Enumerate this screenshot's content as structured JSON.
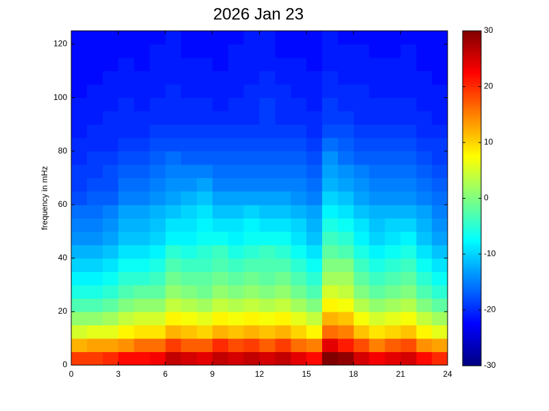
{
  "chart_data": {
    "type": "heatmap",
    "title": "2026 Jan 23",
    "ylabel": "frequency in mHz",
    "colormap": "jet",
    "xlim": [
      0,
      24
    ],
    "xticks": [
      0,
      3,
      6,
      9,
      12,
      15,
      18,
      21,
      24
    ],
    "ylim": [
      0,
      125
    ],
    "yticks": [
      0,
      20,
      40,
      60,
      80,
      100,
      120
    ],
    "clim": [
      -30,
      30
    ],
    "cticks": [
      -30,
      -20,
      -10,
      0,
      10,
      20,
      30
    ],
    "z": [
      [
        19,
        19,
        20,
        22,
        22,
        23,
        26,
        25,
        24,
        26,
        25,
        26,
        25,
        26,
        24,
        22,
        30,
        29,
        25,
        23,
        24,
        25,
        22,
        20
      ],
      [
        12,
        13,
        13,
        14,
        16,
        16,
        19,
        17,
        17,
        20,
        18,
        19,
        17,
        19,
        16,
        15,
        24,
        21,
        18,
        15,
        17,
        18,
        14,
        13
      ],
      [
        5,
        6,
        6,
        8,
        9,
        9,
        12,
        11,
        10,
        12,
        11,
        12,
        11,
        12,
        10,
        8,
        16,
        15,
        11,
        9,
        10,
        11,
        8,
        6
      ],
      [
        1,
        1,
        2,
        4,
        5,
        5,
        8,
        7,
        6,
        8,
        7,
        8,
        7,
        8,
        6,
        4,
        12,
        11,
        7,
        5,
        6,
        7,
        4,
        2
      ],
      [
        -3,
        -3,
        -2,
        0,
        1,
        1,
        4,
        3,
        2,
        4,
        3,
        4,
        3,
        4,
        2,
        0,
        8,
        7,
        3,
        1,
        2,
        3,
        0,
        -2
      ],
      [
        -6,
        -6,
        -5,
        -3,
        -2,
        -2,
        1,
        0,
        -1,
        1,
        0,
        1,
        0,
        1,
        -1,
        -3,
        5,
        4,
        0,
        -2,
        -1,
        0,
        -3,
        -5
      ],
      [
        -8,
        -8,
        -7,
        -5,
        -5,
        -4,
        -1,
        -2,
        -2,
        -1,
        -2,
        -1,
        -2,
        -1,
        -3,
        -5,
        2,
        2,
        -2,
        -4,
        -3,
        -2,
        -5,
        -7
      ],
      [
        -10,
        -10,
        -9,
        -7,
        -7,
        -6,
        -3,
        -4,
        -4,
        -3,
        -4,
        -3,
        -3,
        -3,
        -5,
        -7,
        0,
        0,
        -4,
        -6,
        -5,
        -4,
        -7,
        -9
      ],
      [
        -12,
        -12,
        -11,
        -9,
        -9,
        -8,
        -5,
        -6,
        -5,
        -4,
        -6,
        -5,
        -4,
        -5,
        -7,
        -9,
        -2,
        -3,
        -6,
        -8,
        -7,
        -6,
        -9,
        -11
      ],
      [
        -14,
        -14,
        -13,
        -11,
        -11,
        -10,
        -8,
        -8,
        -7,
        -7,
        -8,
        -7,
        -7,
        -7,
        -9,
        -11,
        -4,
        -5,
        -8,
        -10,
        -9,
        -8,
        -11,
        -13
      ],
      [
        -15,
        -15,
        -14,
        -12,
        -12,
        -11,
        -9,
        -9,
        -8,
        -9,
        -9,
        -8,
        -9,
        -9,
        -10,
        -12,
        -6,
        -7,
        -9,
        -11,
        -10,
        -10,
        -12,
        -14
      ],
      [
        -16,
        -16,
        -15,
        -13,
        -13,
        -12,
        -11,
        -10,
        -9,
        -11,
        -11,
        -10,
        -11,
        -11,
        -12,
        -13,
        -8,
        -9,
        -11,
        -12,
        -12,
        -12,
        -13,
        -15
      ],
      [
        -18,
        -17,
        -17,
        -15,
        -15,
        -14,
        -13,
        -12,
        -11,
        -13,
        -13,
        -13,
        -13,
        -13,
        -14,
        -15,
        -10,
        -11,
        -13,
        -14,
        -14,
        -14,
        -15,
        -16
      ],
      [
        -19,
        -18,
        -18,
        -16,
        -16,
        -15,
        -14,
        -14,
        -13,
        -15,
        -15,
        -15,
        -15,
        -15,
        -15,
        -16,
        -12,
        -13,
        -14,
        -15,
        -15,
        -15,
        -16,
        -17
      ],
      [
        -19,
        -19,
        -18,
        -17,
        -17,
        -16,
        -15,
        -15,
        -15,
        -16,
        -16,
        -16,
        -16,
        -16,
        -16,
        -17,
        -13,
        -14,
        -15,
        -16,
        -16,
        -16,
        -17,
        -18
      ],
      [
        -20,
        -19,
        -19,
        -18,
        -18,
        -17,
        -16,
        -17,
        -17,
        -17,
        -17,
        -17,
        -17,
        -17,
        -17,
        -18,
        -14,
        -16,
        -17,
        -17,
        -17,
        -17,
        -18,
        -19
      ],
      [
        -20,
        -20,
        -20,
        -19,
        -19,
        -18,
        -18,
        -18,
        -18,
        -18,
        -18,
        -18,
        -18,
        -18,
        -18,
        -19,
        -16,
        -17,
        -18,
        -18,
        -18,
        -18,
        -19,
        -19
      ],
      [
        -21,
        -20,
        -20,
        -20,
        -20,
        -19,
        -19,
        -19,
        -19,
        -19,
        -19,
        -19,
        -19,
        -19,
        -19,
        -20,
        -18,
        -18,
        -19,
        -19,
        -19,
        -19,
        -20,
        -20
      ],
      [
        -21,
        -21,
        -20,
        -20,
        -20,
        -20,
        -20,
        -20,
        -20,
        -20,
        -20,
        -20,
        -19,
        -20,
        -20,
        -20,
        -19,
        -19,
        -20,
        -20,
        -20,
        -20,
        -20,
        -21
      ],
      [
        -21,
        -21,
        -21,
        -20,
        -21,
        -20,
        -20,
        -20,
        -20,
        -21,
        -20,
        -20,
        -19,
        -20,
        -20,
        -21,
        -19,
        -20,
        -20,
        -20,
        -20,
        -20,
        -21,
        -21
      ],
      [
        -22,
        -21,
        -21,
        -21,
        -21,
        -21,
        -20,
        -21,
        -21,
        -21,
        -21,
        -20,
        -20,
        -20,
        -21,
        -21,
        -20,
        -20,
        -20,
        -21,
        -21,
        -21,
        -21,
        -21
      ],
      [
        -22,
        -22,
        -21,
        -21,
        -21,
        -21,
        -21,
        -21,
        -21,
        -21,
        -21,
        -21,
        -20,
        -21,
        -21,
        -21,
        -20,
        -21,
        -21,
        -21,
        -21,
        -21,
        -21,
        -22
      ],
      [
        -22,
        -22,
        -22,
        -21,
        -22,
        -21,
        -21,
        -21,
        -21,
        -22,
        -21,
        -21,
        -21,
        -21,
        -21,
        -22,
        -21,
        -21,
        -21,
        -21,
        -21,
        -21,
        -22,
        -22
      ],
      [
        -22,
        -22,
        -22,
        -22,
        -22,
        -21,
        -21,
        -22,
        -22,
        -22,
        -21,
        -21,
        -21,
        -22,
        -22,
        -22,
        -21,
        -21,
        -21,
        -22,
        -22,
        -21,
        -22,
        -22
      ],
      [
        -22,
        -22,
        -22,
        -22,
        -22,
        -22,
        -21,
        -22,
        -22,
        -22,
        -22,
        -21,
        -21,
        -22,
        -22,
        -22,
        -21,
        -22,
        -22,
        -22,
        -22,
        -22,
        -22,
        -22
      ]
    ]
  }
}
